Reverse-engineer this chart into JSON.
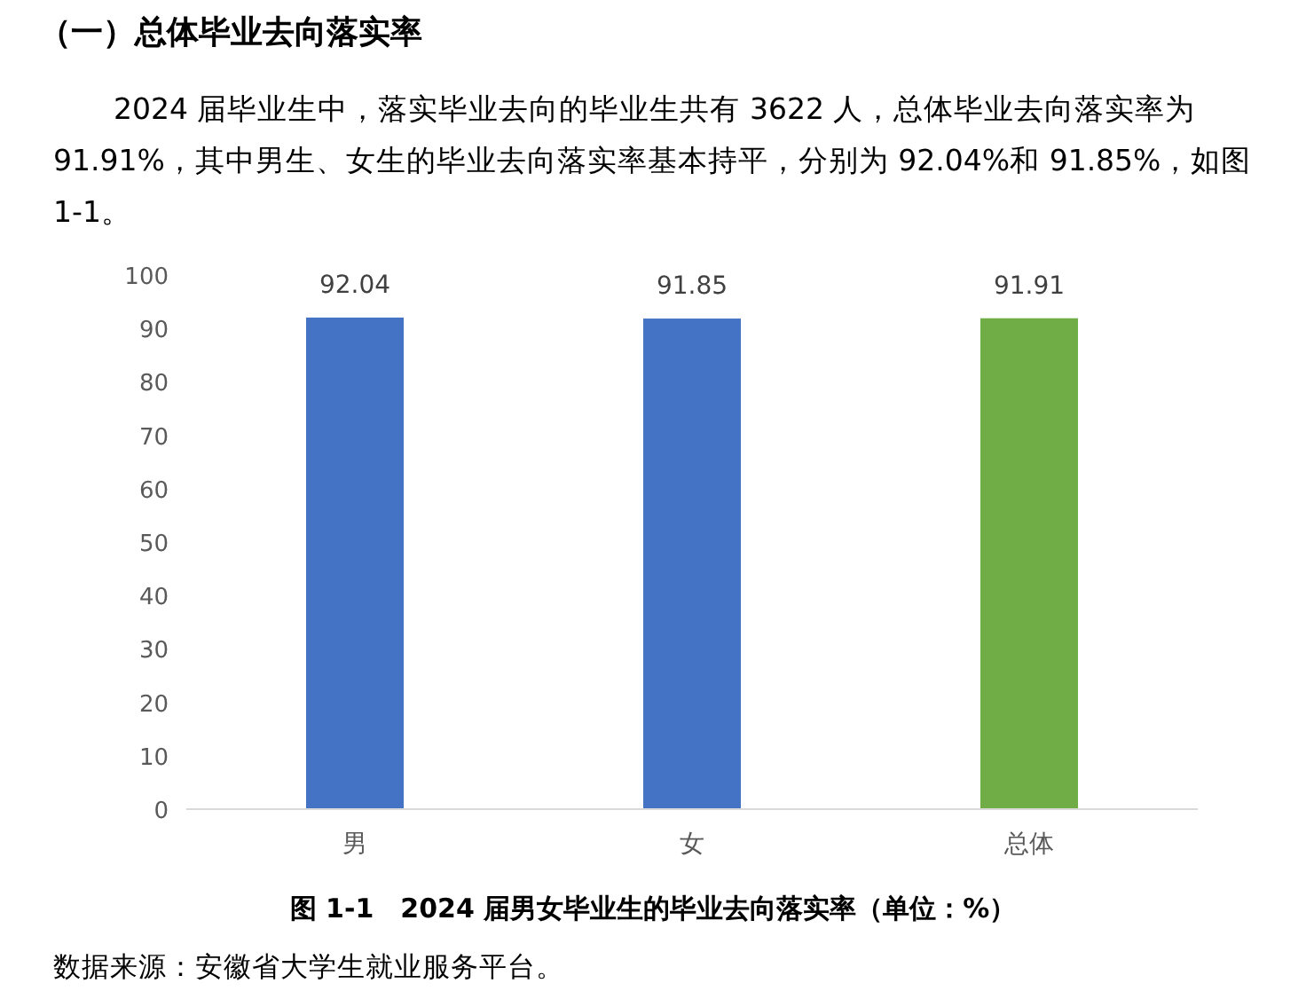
{
  "chart_data": {
    "type": "bar",
    "title": "（一）总体毕业去向落实率",
    "subtitle": "2024 届毕业生中，落实毕业去向的毕业生共有 3622 人，总体毕业去向落实率为 91.91%，其中男生、女生的毕业去向落实率基本持平，分别为 92.04%和 91.85%，如图 1-1。",
    "categories": [
      "男",
      "女",
      "总体"
    ],
    "values": [
      92.04,
      91.85,
      91.91
    ],
    "colors": [
      "#4472c4",
      "#4472c4",
      "#70ad47"
    ],
    "ylim": [
      0,
      100
    ],
    "yticks": [
      0,
      10,
      20,
      30,
      40,
      50,
      60,
      70,
      80,
      90,
      100
    ],
    "data_labels": true,
    "annotations": [
      "图 1-1　2024 届男女毕业生的毕业去向落实率（单位：%）",
      "数据来源：安徽省大学生就业服务平台。"
    ]
  }
}
